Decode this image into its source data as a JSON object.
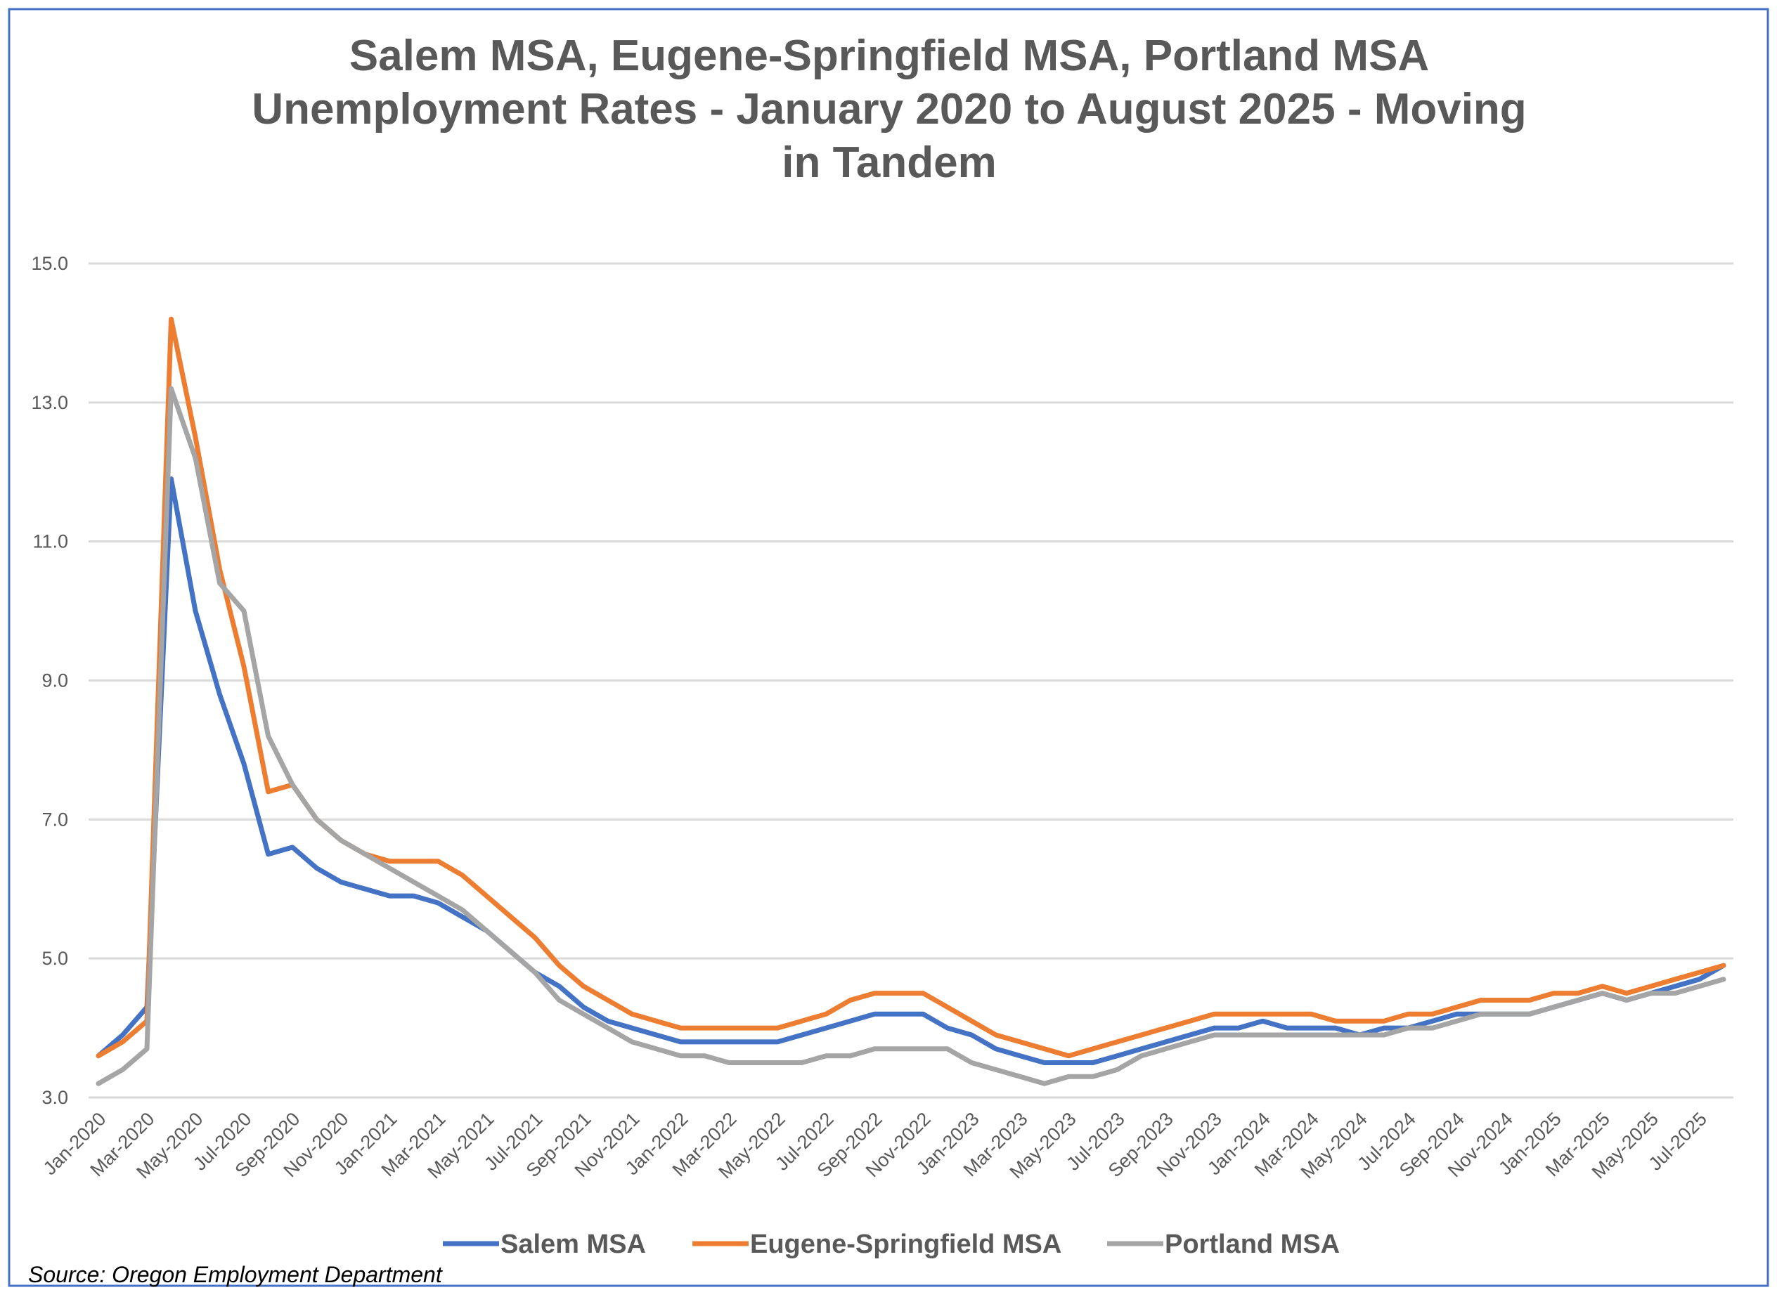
{
  "chart_data": {
    "type": "line",
    "title": [
      "Salem MSA, Eugene-Springfield MSA, Portland MSA",
      "Unemployment Rates - January 2020 to August 2025 -  Moving",
      "in Tandem"
    ],
    "source": "Source: Oregon Employment Department",
    "ylim": [
      3.0,
      15.0
    ],
    "yticks": [
      "15.0",
      "13.0",
      "11.0",
      "9.0",
      "7.0",
      "5.0",
      "3.0"
    ],
    "ytick_values": [
      15,
      13,
      11,
      9,
      7,
      5,
      3
    ],
    "x_start": "Jan-2020",
    "x_end": "Aug-2025",
    "xtick_labels": [
      "Jan-2020",
      "Mar-2020",
      "May-2020",
      "Jul-2020",
      "Sep-2020",
      "Nov-2020",
      "Jan-2021",
      "Mar-2021",
      "May-2021",
      "Jul-2021",
      "Sep-2021",
      "Nov-2021",
      "Jan-2022",
      "Mar-2022",
      "May-2022",
      "Jul-2022",
      "Sep-2022",
      "Nov-2022",
      "Jan-2023",
      "Mar-2023",
      "May-2023",
      "Jul-2023",
      "Sep-2023",
      "Nov-2023",
      "Jan-2024",
      "Mar-2024",
      "May-2024",
      "Jul-2024",
      "Sep-2024",
      "Nov-2024",
      "Jan-2025",
      "Mar-2025",
      "May-2025",
      "Jul-2025"
    ],
    "grid": true,
    "legend_position": "bottom",
    "series": [
      {
        "name": "Salem MSA",
        "color": "#4472C4",
        "values": [
          3.6,
          3.9,
          4.3,
          11.9,
          10.0,
          8.8,
          7.8,
          6.5,
          6.6,
          6.3,
          6.1,
          6.0,
          5.9,
          5.9,
          5.8,
          5.6,
          5.4,
          5.1,
          4.8,
          4.6,
          4.3,
          4.1,
          4.0,
          3.9,
          3.8,
          3.8,
          3.8,
          3.8,
          3.8,
          3.9,
          4.0,
          4.1,
          4.2,
          4.2,
          4.2,
          4.0,
          3.9,
          3.7,
          3.6,
          3.5,
          3.5,
          3.5,
          3.6,
          3.7,
          3.8,
          3.9,
          4.0,
          4.0,
          4.1,
          4.0,
          4.0,
          4.0,
          3.9,
          4.0,
          4.0,
          4.1,
          4.2,
          4.2,
          4.2,
          4.2,
          4.3,
          4.4,
          4.5,
          4.4,
          4.5,
          4.6,
          4.7,
          4.9
        ]
      },
      {
        "name": "Eugene-Springfield MSA",
        "color": "#ED7D31",
        "values": [
          3.6,
          3.8,
          4.1,
          14.2,
          12.5,
          10.6,
          9.2,
          7.4,
          7.5,
          7.0,
          6.7,
          6.5,
          6.4,
          6.4,
          6.4,
          6.2,
          5.9,
          5.6,
          5.3,
          4.9,
          4.6,
          4.4,
          4.2,
          4.1,
          4.0,
          4.0,
          4.0,
          4.0,
          4.0,
          4.1,
          4.2,
          4.4,
          4.5,
          4.5,
          4.5,
          4.3,
          4.1,
          3.9,
          3.8,
          3.7,
          3.6,
          3.7,
          3.8,
          3.9,
          4.0,
          4.1,
          4.2,
          4.2,
          4.2,
          4.2,
          4.2,
          4.1,
          4.1,
          4.1,
          4.2,
          4.2,
          4.3,
          4.4,
          4.4,
          4.4,
          4.5,
          4.5,
          4.6,
          4.5,
          4.6,
          4.7,
          4.8,
          4.9
        ]
      },
      {
        "name": "Portland MSA",
        "color": "#A5A5A5",
        "values": [
          3.2,
          3.4,
          3.7,
          13.2,
          12.2,
          10.4,
          10.0,
          8.2,
          7.5,
          7.0,
          6.7,
          6.5,
          6.3,
          6.1,
          5.9,
          5.7,
          5.4,
          5.1,
          4.8,
          4.4,
          4.2,
          4.0,
          3.8,
          3.7,
          3.6,
          3.6,
          3.5,
          3.5,
          3.5,
          3.5,
          3.6,
          3.6,
          3.7,
          3.7,
          3.7,
          3.7,
          3.5,
          3.4,
          3.3,
          3.2,
          3.3,
          3.3,
          3.4,
          3.6,
          3.7,
          3.8,
          3.9,
          3.9,
          3.9,
          3.9,
          3.9,
          3.9,
          3.9,
          3.9,
          4.0,
          4.0,
          4.1,
          4.2,
          4.2,
          4.2,
          4.3,
          4.4,
          4.5,
          4.4,
          4.5,
          4.5,
          4.6,
          4.7
        ]
      }
    ]
  },
  "colors": {
    "border": "#4472C4",
    "grid": "#D9D9D9",
    "text": "#595959"
  }
}
